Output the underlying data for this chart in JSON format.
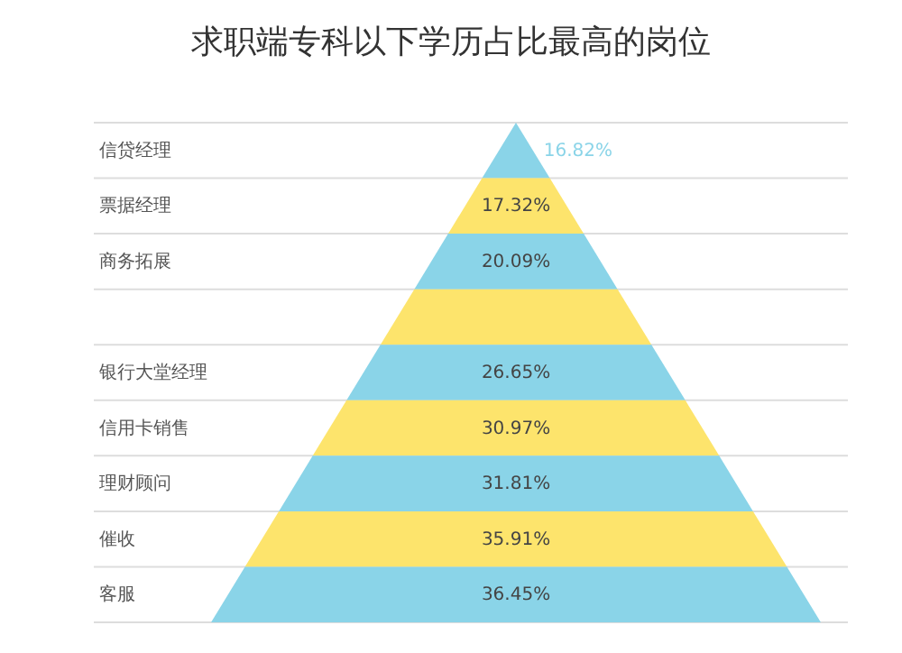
{
  "chart_data": {
    "type": "other",
    "title": "求职端专科以下学历占比最高的岗位",
    "categories": [
      "信贷经理",
      "票据经理",
      "商务拓展",
      null,
      "银行大堂经理",
      "信用卡销售",
      "理财顾问",
      "催收",
      "客服"
    ],
    "values": [
      16.82,
      17.32,
      20.09,
      null,
      26.65,
      30.97,
      31.81,
      35.91,
      36.45
    ],
    "value_labels": [
      "16.82%",
      "17.32%",
      "20.09%",
      null,
      "26.65%",
      "30.97%",
      "31.81%",
      "35.91%",
      "36.45%"
    ],
    "colors": [
      "#8ad4e8",
      "#fde46c",
      "#8ad4e8",
      "#fde46c",
      "#8ad4e8",
      "#fde46c",
      "#8ad4e8",
      "#fde46c",
      "#8ad4e8"
    ],
    "data_labels": true
  }
}
